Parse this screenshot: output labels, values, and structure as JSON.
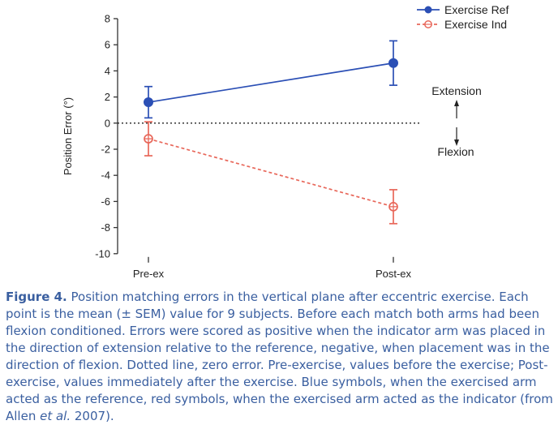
{
  "chart_data": {
    "type": "line",
    "categories": [
      "Pre-ex",
      "Post-ex"
    ],
    "ylabel": "Position Error (°)",
    "ylim": [
      -10,
      8
    ],
    "yticks": [
      8,
      6,
      4,
      2,
      0,
      -2,
      -4,
      -6,
      -8,
      -10
    ],
    "reference_line": {
      "y": 0,
      "style": "dotted"
    },
    "series": [
      {
        "name": "Exercise Ref",
        "color": "#2b4fb5",
        "marker": "filled-circle",
        "line_style": "solid",
        "values": [
          1.6,
          4.6
        ],
        "error": [
          1.2,
          1.7
        ]
      },
      {
        "name": "Exercise Ind",
        "color": "#e8675a",
        "marker": "open-circle-cross",
        "line_style": "dashed",
        "values": [
          -1.2,
          -6.4
        ],
        "error": [
          1.3,
          1.3
        ]
      }
    ],
    "annotations": {
      "top": "Extension",
      "bottom": "Flexion"
    },
    "legend_position": "top-right"
  },
  "caption": {
    "figure_label": "Figure 4.",
    "before_etal": " Position matching errors in the vertical plane after eccentric exercise. Each point is the mean (± SEM) value for 9 subjects. Before each match both arms had been flexion conditioned. Errors were scored as positive when the indicator arm was placed in the direction of extension relative to the reference, negative, when placement was in the direction of flexion. Dotted line, zero error. Pre-exercise, values before the exercise; Post-exercise, values immediately after the exercise. Blue symbols, when the exercised arm acted as the reference, red symbols, when the exercised arm acted as the indicator (from Allen ",
    "etal": "et al.",
    "after_etal": " 2007)."
  }
}
